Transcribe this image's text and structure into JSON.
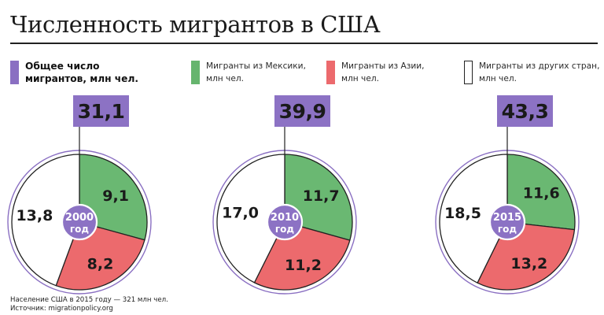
{
  "title": "Численность мигрантов в США",
  "legend": [
    {
      "label": "Общее число\nмигрантов, млн чел.",
      "color": "#8a6fc2",
      "style": "strong"
    },
    {
      "label": "Мигранты из Мексики,\nмлн чел.",
      "color": "#66b56e",
      "style": "small"
    },
    {
      "label": "Мигранты из Азии,\nмлн чел.",
      "color": "#ec6a6d",
      "style": "small"
    },
    {
      "label": "Мигранты из других стран,\nмлн чел.",
      "color": "#ffffff",
      "style": "small"
    }
  ],
  "colors": {
    "total": "#8c72c4",
    "mexico": "#6ab872",
    "asia": "#ec6a6d",
    "other": "#ffffff",
    "ring": "#8a6fc2"
  },
  "chart_data": [
    {
      "type": "pie",
      "year_label": "2000",
      "year_unit": "год",
      "total": "31,1",
      "slices": [
        {
          "name": "Мигранты из Мексики",
          "value": 9.1,
          "label": "9,1"
        },
        {
          "name": "Мигранты из Азии",
          "value": 8.2,
          "label": "8,2"
        },
        {
          "name": "Мигранты из других стран",
          "value": 13.8,
          "label": "13,8"
        }
      ]
    },
    {
      "type": "pie",
      "year_label": "2010",
      "year_unit": "год",
      "total": "39,9",
      "slices": [
        {
          "name": "Мигранты из Мексики",
          "value": 11.7,
          "label": "11,7"
        },
        {
          "name": "Мигранты из Азии",
          "value": 11.2,
          "label": "11,2"
        },
        {
          "name": "Мигранты из других стран",
          "value": 17.0,
          "label": "17,0"
        }
      ]
    },
    {
      "type": "pie",
      "year_label": "2015",
      "year_unit": "год",
      "total": "43,3",
      "slices": [
        {
          "name": "Мигранты из Мексики",
          "value": 11.6,
          "label": "11,6"
        },
        {
          "name": "Мигранты из Азии",
          "value": 13.2,
          "label": "13,2"
        },
        {
          "name": "Мигранты из других стран",
          "value": 18.5,
          "label": "18,5"
        }
      ]
    }
  ],
  "footer": {
    "note": "Население США в 2015 году — 321 млн чел.",
    "source": "Источник: migrationpolicy.org"
  }
}
